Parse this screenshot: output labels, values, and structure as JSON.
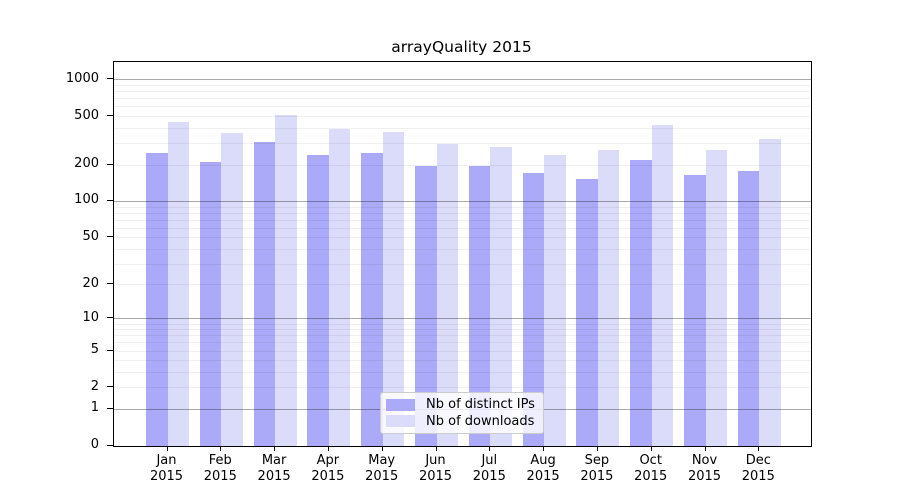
{
  "chart_data": {
    "type": "bar",
    "title": "arrayQuality 2015",
    "year": "2015",
    "months": [
      "Jan",
      "Feb",
      "Mar",
      "Apr",
      "May",
      "Jun",
      "Jul",
      "Aug",
      "Sep",
      "Oct",
      "Nov",
      "Dec"
    ],
    "categories": [
      "Jan 2015",
      "Feb 2015",
      "Mar 2015",
      "Apr 2015",
      "May 2015",
      "Jun 2015",
      "Jul 2015",
      "Aug 2015",
      "Sep 2015",
      "Oct 2015",
      "Nov 2015",
      "Dec 2015"
    ],
    "series": [
      {
        "name": "Nb of distinct IPs",
        "color": "#aaaaf8",
        "values": [
          251,
          211,
          312,
          241,
          250,
          197,
          198,
          172,
          154,
          218,
          167,
          178
        ]
      },
      {
        "name": "Nb of downloads",
        "color": "#dbdbfa",
        "values": [
          448,
          366,
          515,
          397,
          371,
          297,
          281,
          240,
          268,
          426,
          265,
          328
        ]
      }
    ],
    "xlabel": "",
    "ylabel": "",
    "yscale": "log1p",
    "ymax": 1404,
    "yticks": [
      0,
      1,
      2,
      5,
      10,
      20,
      50,
      100,
      200,
      500,
      1000
    ],
    "major_gridlines": [
      1,
      10,
      100,
      1000
    ],
    "minor_gridlines": [
      2,
      3,
      4,
      5,
      6,
      7,
      8,
      9,
      20,
      30,
      40,
      50,
      60,
      70,
      80,
      90,
      200,
      300,
      400,
      500,
      600,
      700,
      800,
      900
    ],
    "grid": true,
    "legend_position": "lower center"
  }
}
